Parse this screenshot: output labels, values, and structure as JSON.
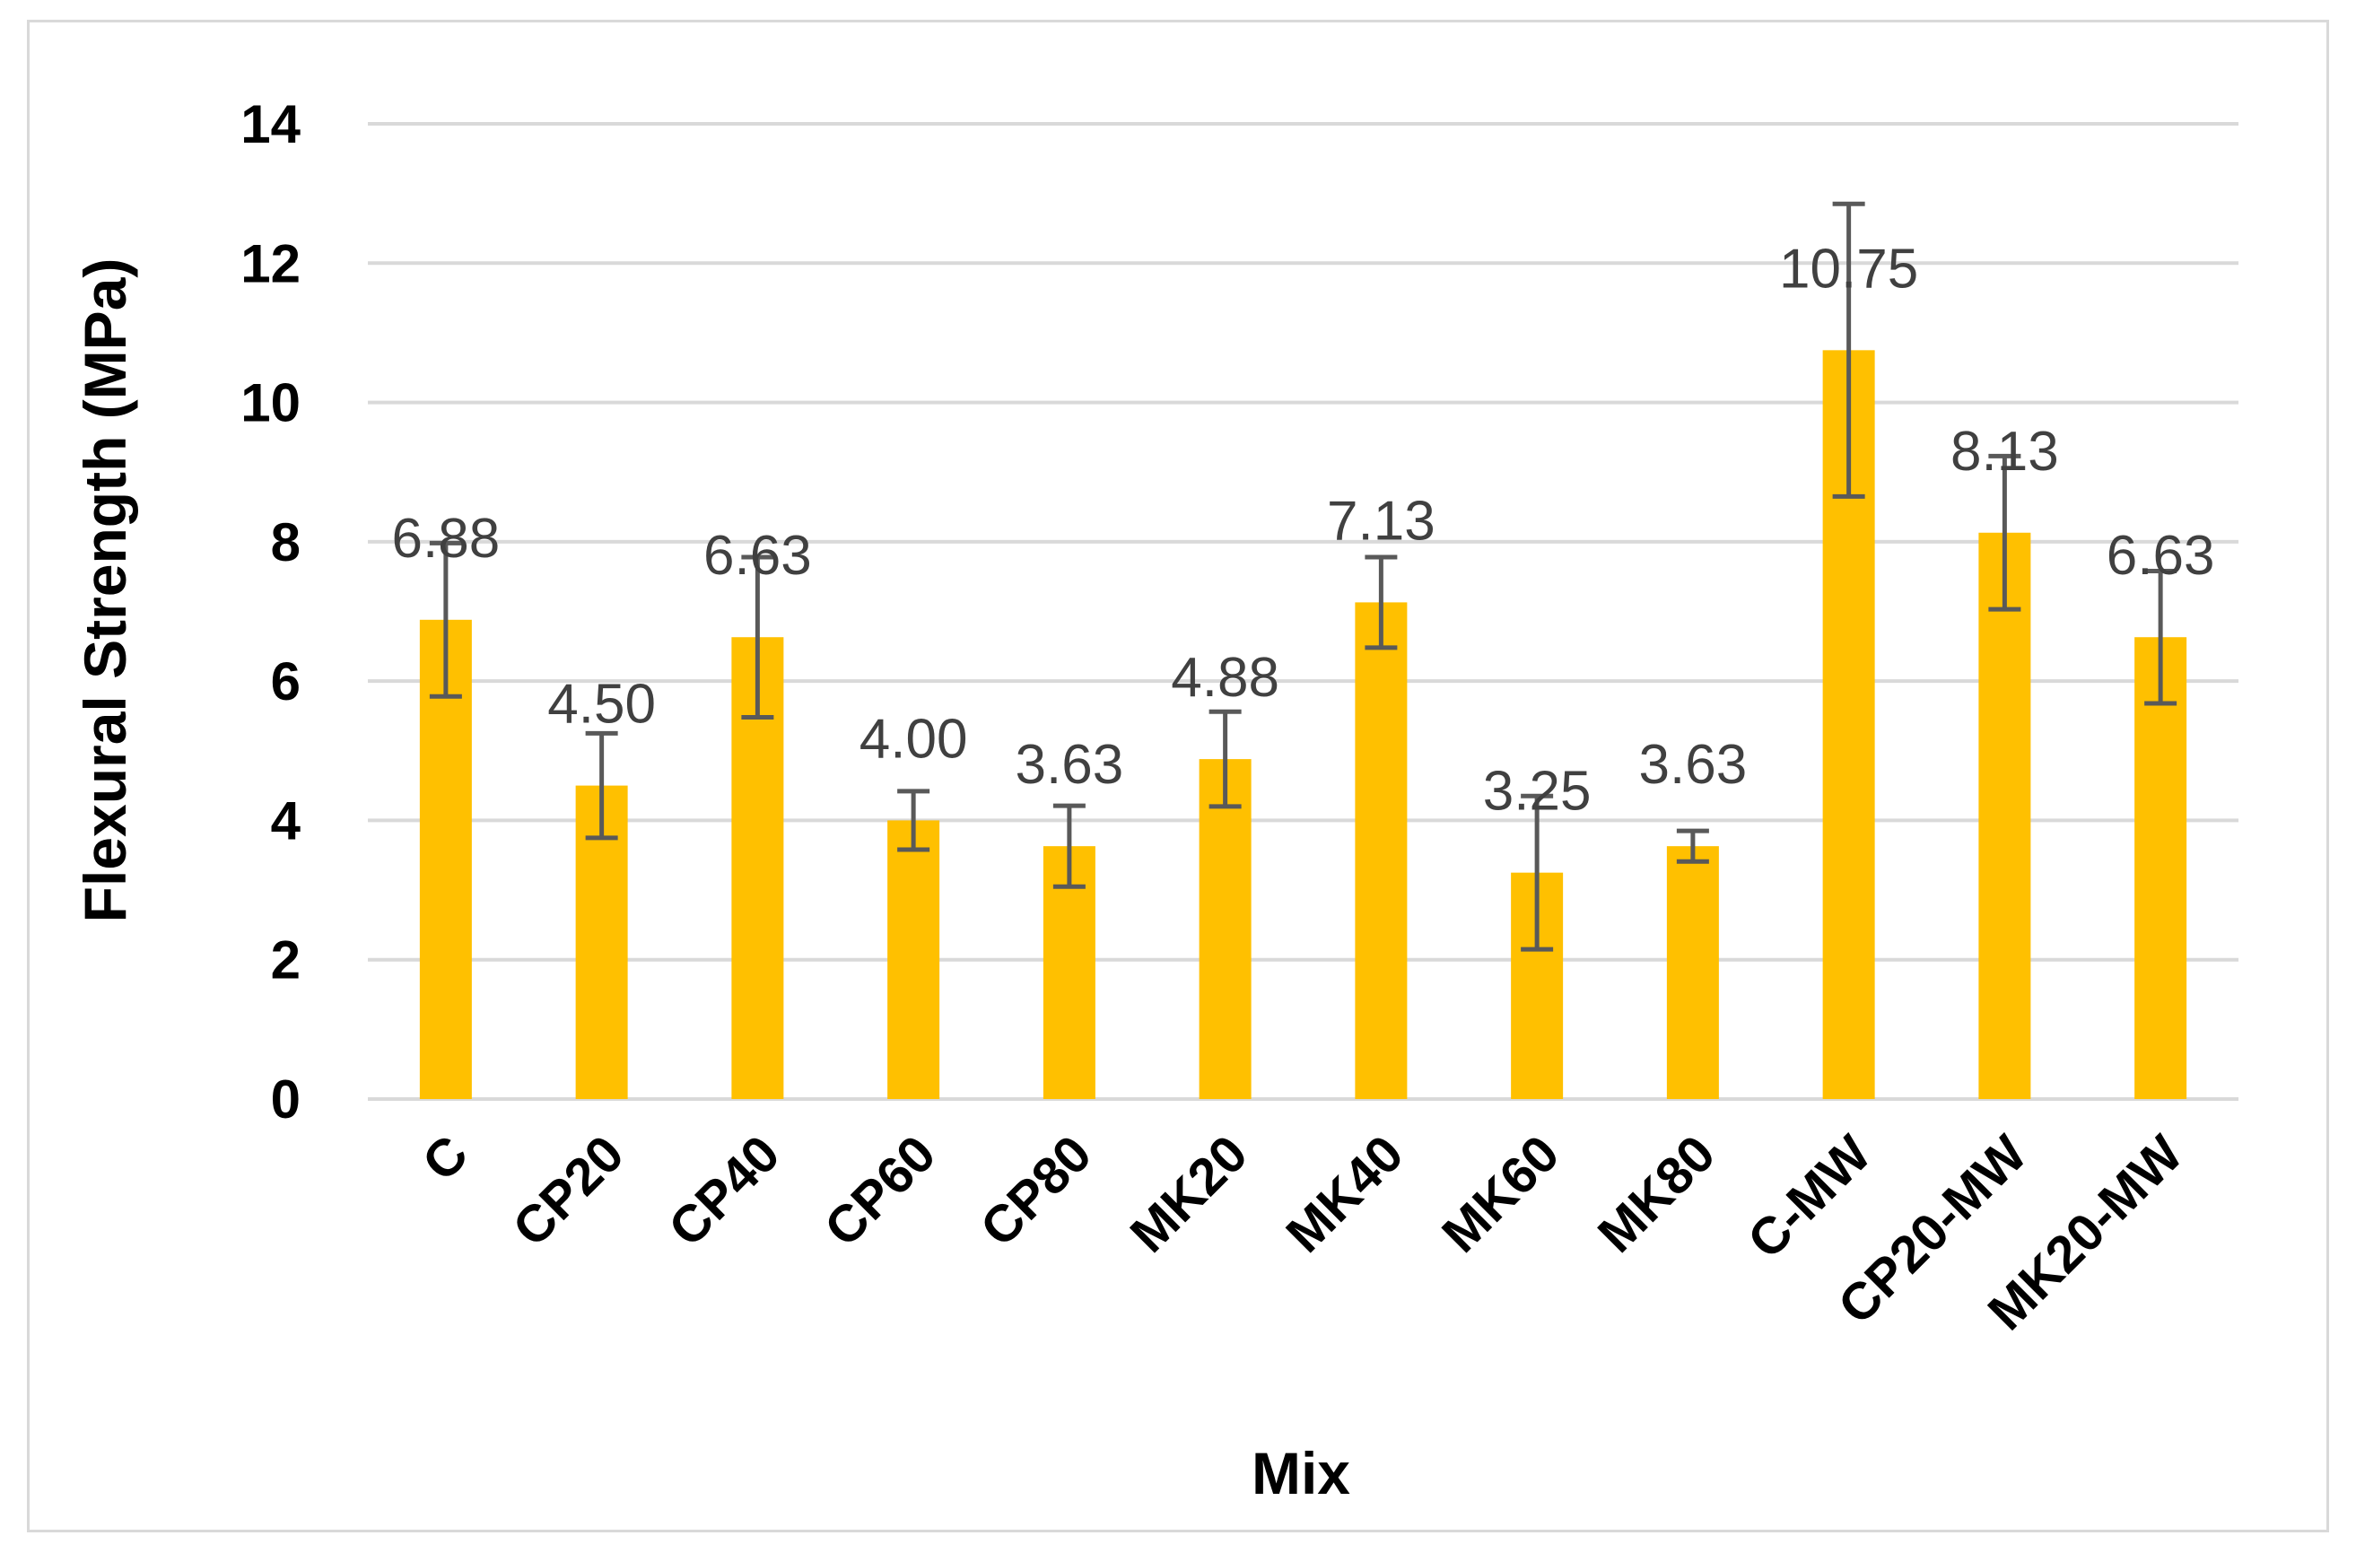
{
  "chart_data": {
    "type": "bar",
    "title": "",
    "xlabel": "Mix",
    "ylabel": "Flexural Strength (MPa)",
    "ylim": [
      0,
      14
    ],
    "yticks": [
      0,
      2,
      4,
      6,
      8,
      10,
      12,
      14
    ],
    "grid": true,
    "legend": "none",
    "categories": [
      "C",
      "CP20",
      "CP40",
      "CP60",
      "CP80",
      "MK20",
      "MK40",
      "MK60",
      "MK80",
      "C-MW",
      "CP20-MW",
      "MK20-MW"
    ],
    "values": [
      6.88,
      4.5,
      6.63,
      4.0,
      3.63,
      4.88,
      7.13,
      3.25,
      3.63,
      10.75,
      8.13,
      6.63
    ],
    "labels": [
      "6.88",
      "4.50",
      "6.63",
      "4.00",
      "3.63",
      "4.88",
      "7.13",
      "3.25",
      "3.63",
      "10.75",
      "8.13",
      "6.63"
    ],
    "error": [
      1.1,
      0.75,
      1.15,
      0.42,
      0.58,
      0.68,
      0.65,
      1.1,
      0.22,
      2.1,
      1.1,
      0.95
    ],
    "colors": {
      "bar": "#FFC000",
      "error": "#595959",
      "grid": "#d9d9d9",
      "frame": "#d9d9d9"
    }
  }
}
